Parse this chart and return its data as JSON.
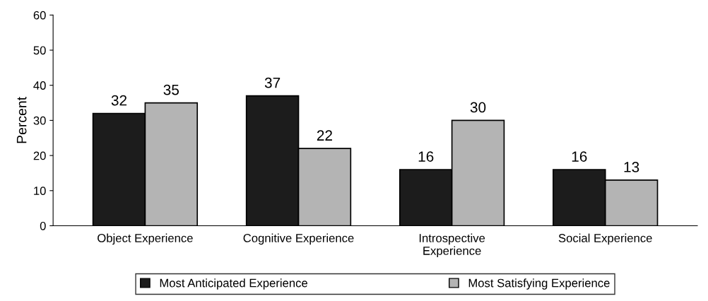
{
  "chart_data": {
    "type": "bar",
    "ylabel": "Percent",
    "categories": [
      "Object Experience",
      "Cognitive Experience",
      "Introspective\nExperience",
      "Social Experience"
    ],
    "series": [
      {
        "name": "Most Anticipated Experience",
        "color": "#1c1c1c",
        "values": [
          32,
          37,
          16,
          16
        ]
      },
      {
        "name": "Most Satisfying Experience",
        "color": "#b4b4b4",
        "values": [
          35,
          22,
          30,
          13
        ]
      }
    ],
    "ylim": [
      0,
      60
    ],
    "yticks": [
      0,
      10,
      20,
      30,
      40,
      50,
      60
    ],
    "grid": false,
    "data_labels": true,
    "legend": "bottom"
  }
}
